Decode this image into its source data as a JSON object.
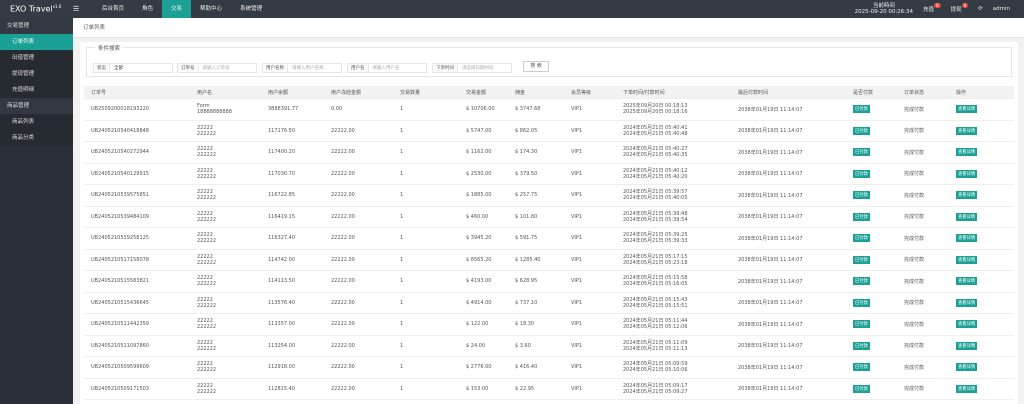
{
  "header": {
    "logo": "EXO Travel",
    "version": "v1.0",
    "menu_icon": "☰",
    "nav": [
      "后台首页",
      "角色",
      "交易",
      "帮助中心",
      "系统管理"
    ],
    "time_label": "当前時间",
    "time": "2025-09-20 00:26:34",
    "recharge": "充值",
    "recharge_badge": "0",
    "withdraw": "提现",
    "withdraw_badge": "0",
    "refresh": "⟳",
    "user": "admin"
  },
  "sidebar": {
    "groups": [
      {
        "title": "交易管理",
        "items": [
          "订单列表",
          "出借管理",
          "提现管理",
          "充值明细"
        ]
      },
      {
        "title": "商品管理",
        "items": [
          "商品列表",
          "商品分类"
        ]
      }
    ]
  },
  "breadcrumb": "订单列表",
  "search": {
    "legend": "条件搜索",
    "status_label": "状态",
    "status_value": "全部",
    "order_label": "订单号",
    "order_placeholder": "请输入订单号",
    "username_label": "用户名称",
    "username_placeholder": "请输入用户名称",
    "name_label": "用户名",
    "name_placeholder": "请输入用户名",
    "time_label": "下单时间",
    "time_placeholder": "请选择日期时间",
    "button": "搜 索"
  },
  "table": {
    "columns": [
      "订单号",
      "用户名",
      "用户余额",
      "用户冻结金额",
      "交易数量",
      "交易金额",
      "佣金",
      "会员等级",
      "下单时间/付款时间",
      "最后付款时间",
      "是否付款",
      "订单状态",
      "操作"
    ],
    "rows": [
      [
        "UB2509200018193220",
        [
          "Form",
          "18888888888"
        ],
        "3888391.77",
        "0.00",
        "1",
        "$ 10706.00",
        "$ 3747.68",
        "VIP1",
        [
          "2025年09月20日 00:18:13",
          "2025年09月20日 00:18:16"
        ],
        "2038年01月19日 11:14:07",
        "已付款",
        "完成付款",
        "查看详情"
      ],
      [
        "UB2405210540418848",
        [
          "22222",
          "222222"
        ],
        "117176.50",
        "22222.00",
        "1",
        "$ 5747.00",
        "$ 862.05",
        "VIP1",
        [
          "2024年05月21日 05:40:41",
          "2024年05月21日 05:40:48"
        ],
        "2038年01月19日 11:14:07",
        "已付款",
        "完成付款",
        "查看详情"
      ],
      [
        "UB2405210540272944",
        [
          "22222",
          "222222"
        ],
        "117400.20",
        "22222.00",
        "1",
        "$ 1162.00",
        "$ 174.30",
        "VIP1",
        [
          "2024年05月21日 05:40:27",
          "2024年05月21日 05:40:35"
        ],
        "2038年01月19日 11:14:07",
        "已付款",
        "完成付款",
        "查看详情"
      ],
      [
        "UB2405210540129915",
        [
          "22222",
          "222222"
        ],
        "117030.70",
        "22222.00",
        "1",
        "$ 2530.00",
        "$ 379.50",
        "VIP1",
        [
          "2024年05月21日 05:40:12",
          "2024年05月21日 05:40:20"
        ],
        "2038年01月19日 11:14:07",
        "已付款",
        "完成付款",
        "查看详情"
      ],
      [
        "UB2405210539575851",
        [
          "22222",
          "222222"
        ],
        "116722.85",
        "22222.00",
        "1",
        "$ 1885.00",
        "$ 257.75",
        "VIP1",
        [
          "2024年05月21日 05:39:57",
          "2024年05月21日 05:40:05"
        ],
        "2038年01月19日 11:14:07",
        "已付款",
        "完成付款",
        "查看详情"
      ],
      [
        "UB2405210539484109",
        [
          "22222",
          "222222"
        ],
        "116419.15",
        "22222.00",
        "1",
        "$ 460.00",
        "$ 101.80",
        "VIP1",
        [
          "2024年05月21日 05:39:48",
          "2024年05月21日 05:39:54"
        ],
        "2038年01月19日 11:14:07",
        "已付款",
        "完成付款",
        "查看详情"
      ],
      [
        "UB2405210539258125",
        [
          "22222",
          "222222"
        ],
        "116327.40",
        "22222.00",
        "1",
        "$ 3945.20",
        "$ 591.75",
        "VIP1",
        [
          "2024年05月21日 05:39:25",
          "2024年05月21日 05:39:33"
        ],
        "2038年01月19日 11:14:07",
        "已付款",
        "完成付款",
        "查看详情"
      ],
      [
        "UB2405210517158078",
        [
          "22222",
          "222222"
        ],
        "114742.00",
        "22222.00",
        "1",
        "$ 8565.20",
        "$ 1285.40",
        "VIP1",
        [
          "2024年05月21日 05:17:15",
          "2024年05月21日 05:23:18"
        ],
        "2038年01月19日 11:14:07",
        "已付款",
        "完成付款",
        "查看详情"
      ],
      [
        "UB2405210515583821",
        [
          "22222",
          "222222"
        ],
        "114113.50",
        "22222.00",
        "1",
        "$ 4193.00",
        "$ 628.95",
        "VIP1",
        [
          "2024年05月21日 05:15:58",
          "2024年05月21日 05:16:05"
        ],
        "2038年01月19日 11:14:07",
        "已付款",
        "完成付款",
        "查看详情"
      ],
      [
        "UB2405210515436645",
        [
          "22222",
          "222222"
        ],
        "113576.40",
        "22222.00",
        "1",
        "$ 4914.00",
        "$ 737.10",
        "VIP1",
        [
          "2024年05月21日 05:15:43",
          "2024年05月21日 05:15:51"
        ],
        "2038年01月19日 11:14:07",
        "已付款",
        "完成付款",
        "查看详情"
      ],
      [
        "UB2405210511442359",
        [
          "22222",
          "222222"
        ],
        "113357.00",
        "22222.00",
        "1",
        "$ 122.00",
        "$ 18.30",
        "VIP1",
        [
          "2024年05月21日 05:11:44",
          "2024年05月21日 05:12:06"
        ],
        "2038年01月19日 11:14:07",
        "已付款",
        "完成付款",
        "查看详情"
      ],
      [
        "UB2405210511097860",
        [
          "22222",
          "222222"
        ],
        "113254.00",
        "22222.00",
        "1",
        "$ 24.00",
        "$ 3.60",
        "VIP1",
        [
          "2024年05月21日 05:11:09",
          "2024年05月21日 05:11:13"
        ],
        "2038年01月19日 11:14:07",
        "已付款",
        "完成付款",
        "查看详情"
      ],
      [
        "UB2405210509599609",
        [
          "22222",
          "222222"
        ],
        "112918.00",
        "22222.00",
        "1",
        "$ 2776.00",
        "$ 416.40",
        "VIP1",
        [
          "2024年05月21日 05:09:59",
          "2024年05月21日 05:10:06"
        ],
        "2038年01月19日 11:14:07",
        "已付款",
        "完成付款",
        "查看详情"
      ],
      [
        "UB2405210509171503",
        [
          "22222",
          "222222"
        ],
        "112815.40",
        "22222.00",
        "1",
        "$ 153.00",
        "$ 22.95",
        "VIP1",
        [
          "2024年05月21日 05:09:17",
          "2024年05月21日 05:09:27"
        ],
        "2038年01月19日 11:14:07",
        "已付款",
        "完成付款",
        "查看详情"
      ]
    ]
  }
}
